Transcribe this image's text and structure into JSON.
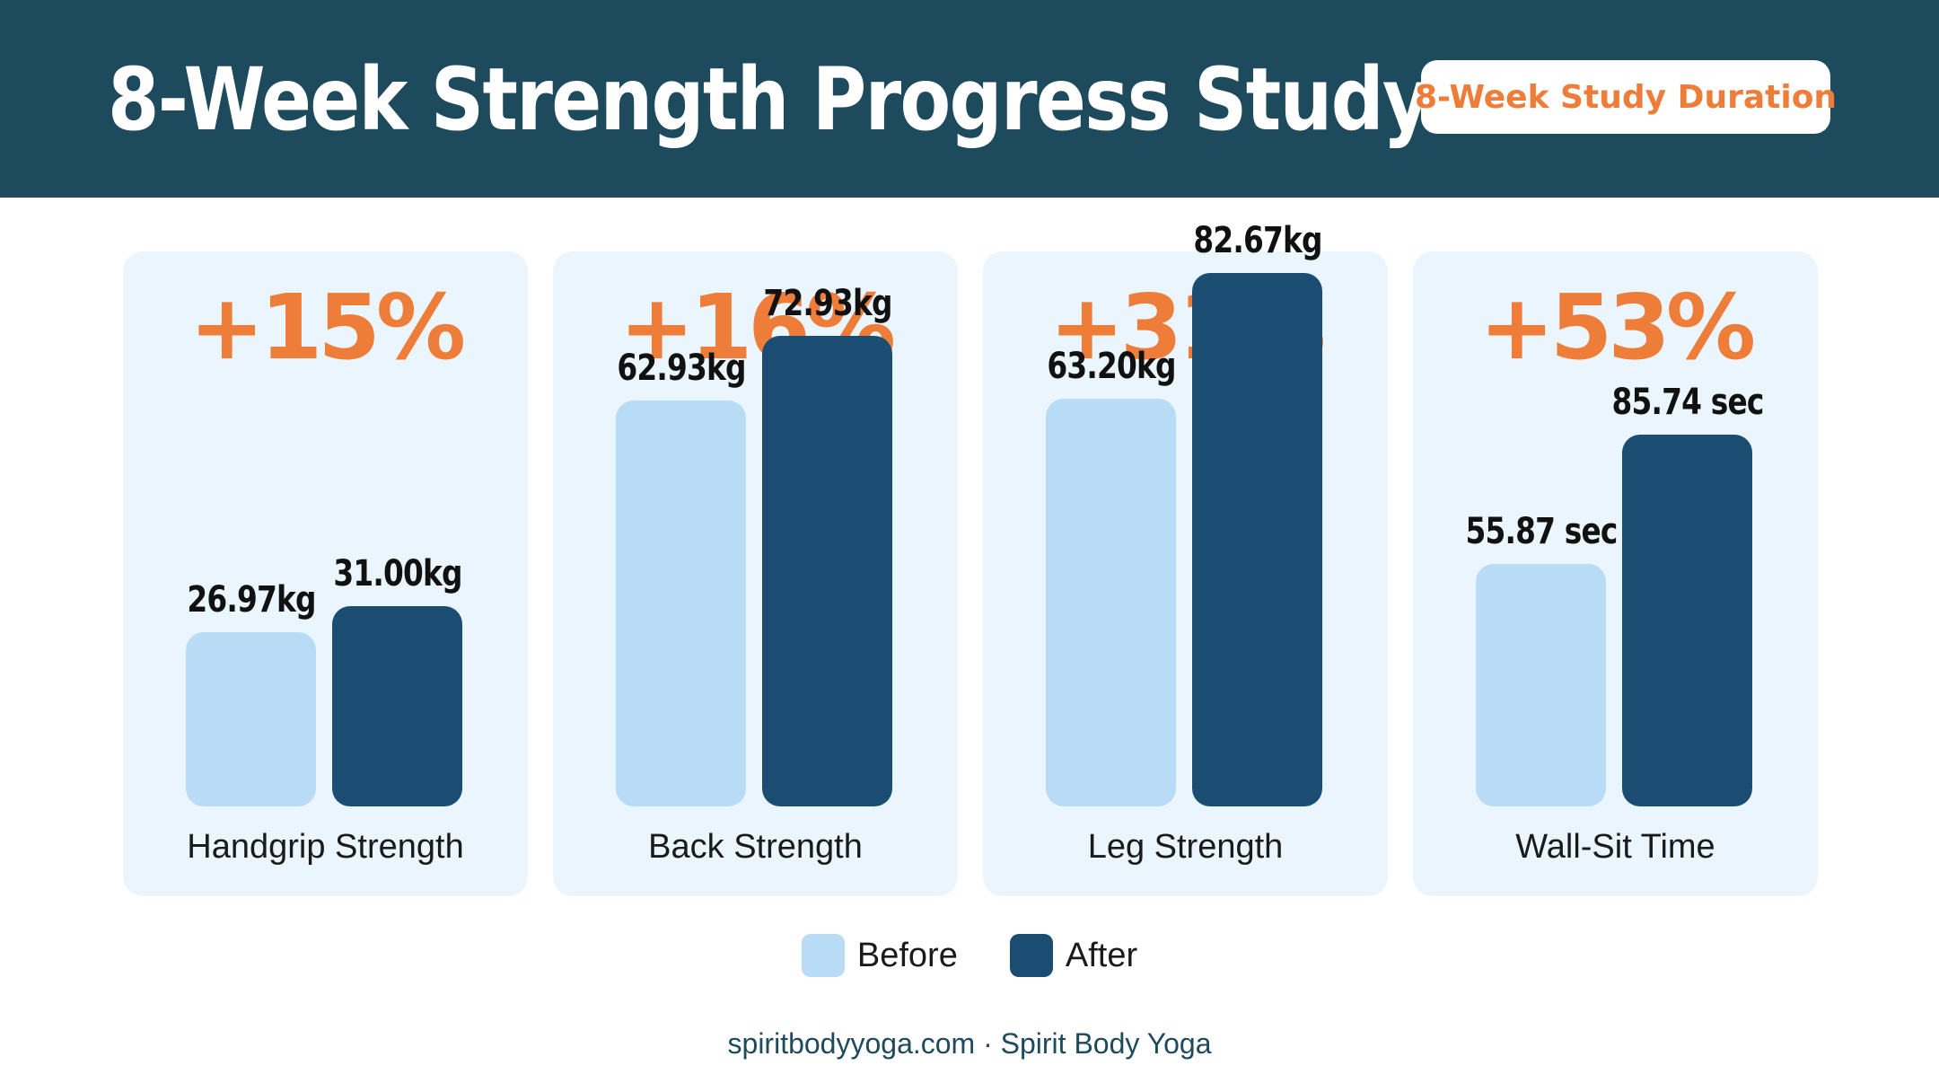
{
  "header": {
    "title": "8-Week Strength Progress Study",
    "badge": "8-Week Study Duration"
  },
  "colors": {
    "header_bg": "#1d4a5c",
    "accent": "#ee7d3a",
    "before": "#b8dcf5",
    "after": "#1b4d73",
    "card_bg": "#eaf5fd"
  },
  "chart_data": {
    "type": "bar",
    "title": "8-Week Strength Progress Study",
    "categories": [
      "Handgrip Strength",
      "Back Strength",
      "Leg Strength",
      "Wall-Sit Time"
    ],
    "series": [
      {
        "name": "Before",
        "values": [
          26.97,
          62.93,
          63.2,
          55.87
        ]
      },
      {
        "name": "After",
        "values": [
          31.0,
          72.93,
          82.67,
          85.74
        ]
      }
    ],
    "value_labels": {
      "before": [
        "26.97kg",
        "62.93kg",
        "63.20kg",
        "55.87 sec"
      ],
      "after": [
        "31.00kg",
        "72.93kg",
        "82.67kg",
        "85.74 sec"
      ]
    },
    "changes": [
      "+15%",
      "+16%",
      "+31%",
      "+53%"
    ],
    "panel_ymax": [
      86,
      86,
      86,
      128
    ],
    "legend_position": "bottom-center",
    "grid": false
  },
  "legend": {
    "before": "Before",
    "after": "After"
  },
  "footer": "spiritbodyyoga.com · Spirit Body Yoga"
}
